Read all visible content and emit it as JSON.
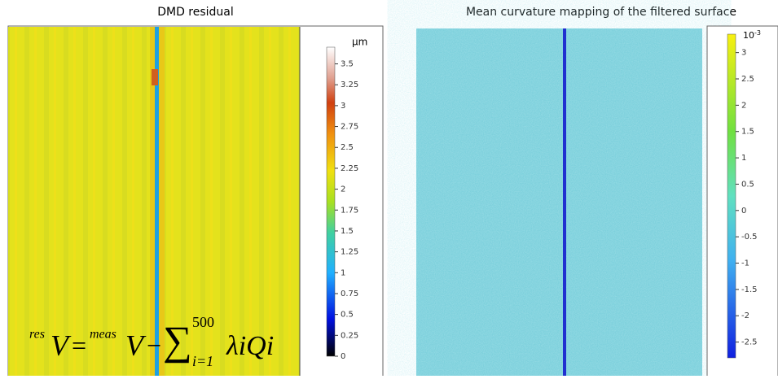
{
  "panels": [
    {
      "title": "DMD residual",
      "unit": "µm",
      "ticks": [
        3.5,
        3.25,
        3,
        2.75,
        2.5,
        2.25,
        2,
        1.75,
        1.5,
        1.25,
        1,
        0.75,
        0.5,
        0.25,
        0
      ],
      "range": [
        0,
        3.7
      ],
      "formula": {
        "sup1": "res",
        "v1": "V",
        "eq": "=",
        "sup2": "meas",
        "v2": "V",
        "minus": "−",
        "sum": "∑",
        "upper": "500",
        "lower": "i=1",
        "term": "λiQi"
      }
    },
    {
      "title": "Mean curvature mapping of the filtered surface",
      "unit": {
        "base": "10",
        "exponent": "-3"
      },
      "ticks": [
        3,
        2.5,
        2,
        1.5,
        1,
        0.5,
        0,
        -0.5,
        -1,
        -1.5,
        -2,
        -2.5
      ],
      "range": [
        -2.8,
        3.35
      ]
    }
  ]
}
